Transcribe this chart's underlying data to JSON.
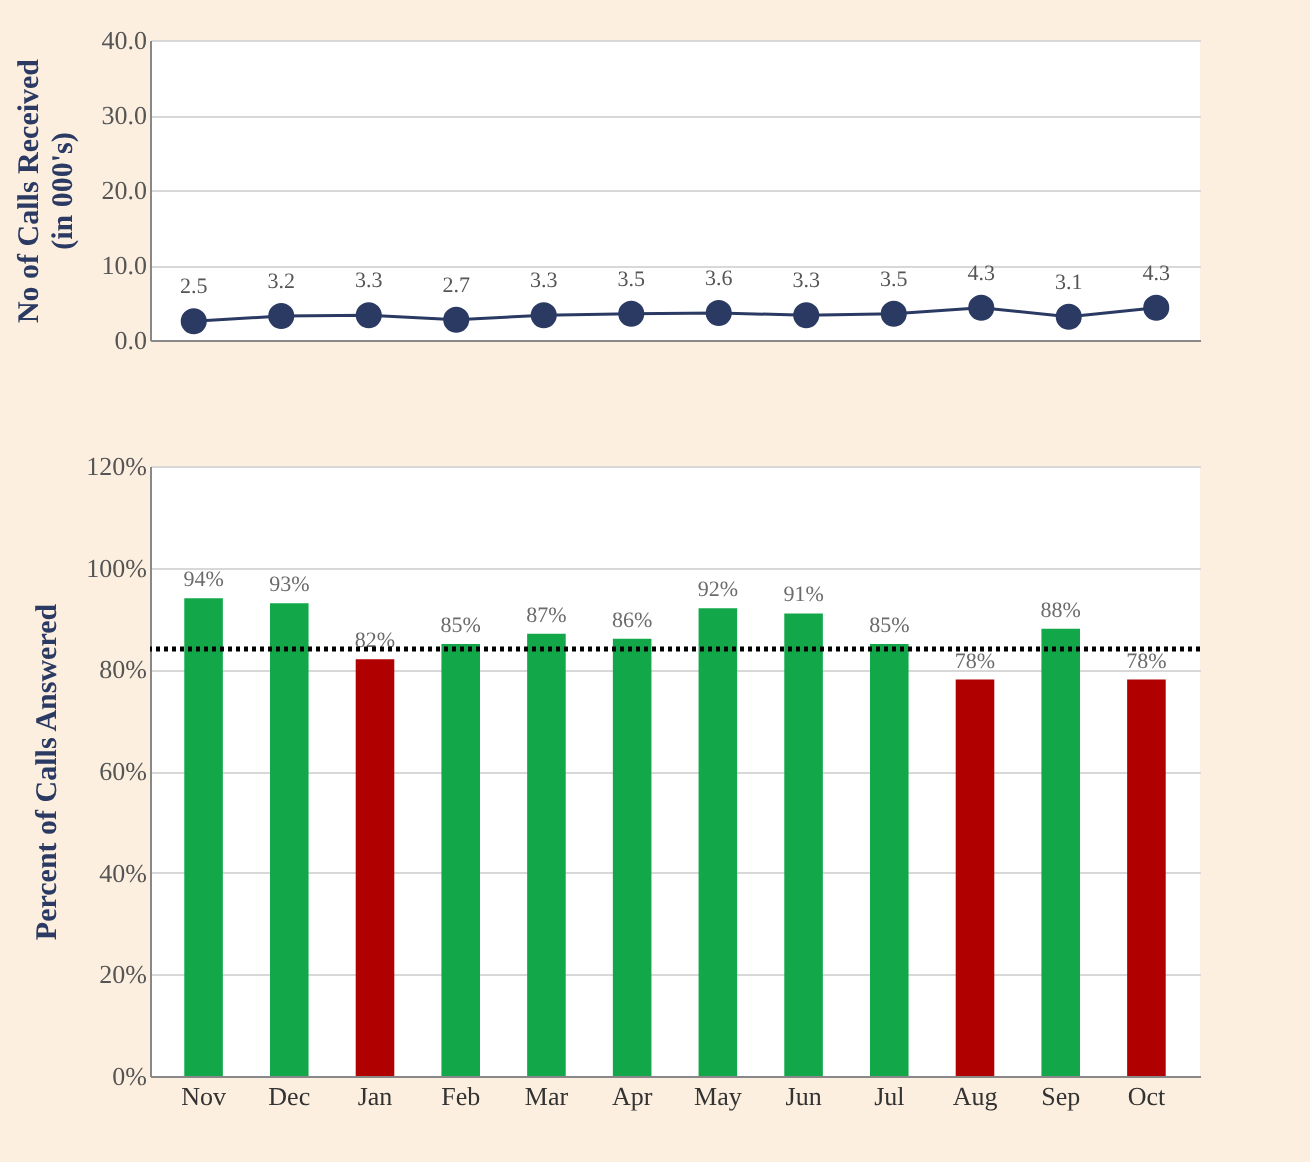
{
  "chart_data": [
    {
      "type": "line",
      "ylabel": "No of Calls Received\n(in 000's)",
      "categories": [
        null,
        null,
        null,
        null,
        null,
        null,
        null,
        null,
        null,
        null,
        null,
        null
      ],
      "series": [
        {
          "color": "#2b3a63",
          "values": [
            2.5,
            3.2,
            3.3,
            2.7,
            3.3,
            3.5,
            3.6,
            3.3,
            3.5,
            4.3,
            3.1,
            4.3
          ]
        }
      ],
      "ylim": [
        0,
        40
      ],
      "yticks": [
        {
          "value": 0,
          "label": "0.0"
        },
        {
          "value": 10,
          "label": "10.0"
        },
        {
          "value": 20,
          "label": "20.0"
        },
        {
          "value": 30,
          "label": "30.0"
        },
        {
          "value": 40,
          "label": "40.0"
        }
      ],
      "grid": "y",
      "marker": "circle",
      "data_labels": true,
      "tick_labels": "y"
    },
    {
      "type": "bar",
      "ylabel": "Percent of Calls Answered",
      "categories": [
        "Nov",
        "Dec",
        "Jan",
        "Feb",
        "Mar",
        "Apr",
        "May",
        "Jun",
        "Jul",
        "Aug",
        "Sep",
        "Oct"
      ],
      "values": [
        94,
        93,
        82,
        85,
        87,
        86,
        92,
        91,
        85,
        78,
        88,
        78
      ],
      "colors": [
        "#12a84a",
        "#12a84a",
        "#b00000",
        "#12a84a",
        "#12a84a",
        "#12a84a",
        "#12a84a",
        "#12a84a",
        "#12a84a",
        "#b00000",
        "#12a84a",
        "#b00000"
      ],
      "ylim": [
        0,
        120
      ],
      "yticks": [
        {
          "value": 0,
          "label": "0%"
        },
        {
          "value": 20,
          "label": "20%"
        },
        {
          "value": 40,
          "label": "40%"
        },
        {
          "value": 60,
          "label": "60%"
        },
        {
          "value": 80,
          "label": "80%"
        },
        {
          "value": 100,
          "label": "100%"
        },
        {
          "value": 120,
          "label": "120%"
        }
      ],
      "value_labels": [
        "94%",
        "93%",
        "82%",
        "85%",
        "87%",
        "86%",
        "92%",
        "91%",
        "85%",
        "78%",
        "88%",
        "78%"
      ],
      "grid": "y",
      "ref_lines": [
        {
          "axis": "y",
          "value": 84,
          "color": "#000000",
          "line_style": "dotted"
        }
      ]
    }
  ]
}
